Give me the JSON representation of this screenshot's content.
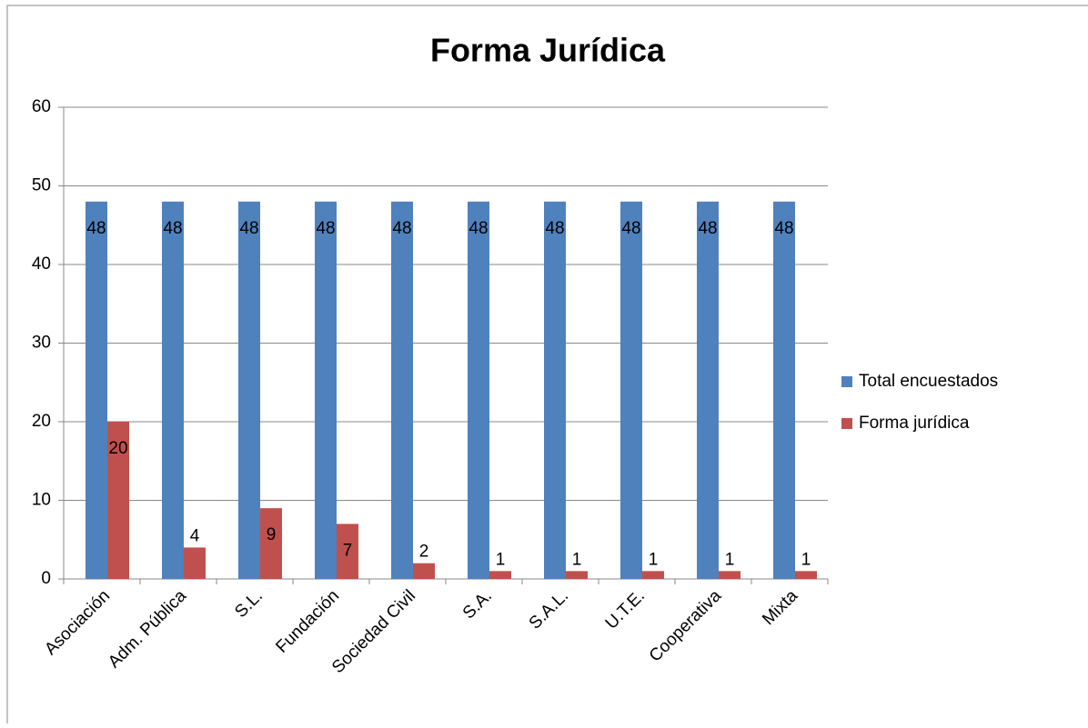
{
  "chart_data": {
    "type": "bar",
    "title": "Forma Jurídica",
    "categories": [
      "Asociación",
      "Adm. Pública",
      "S.L.",
      "Fundación",
      "Sociedad Civil",
      "S.A.",
      "S.A.L.",
      "U.T.E.",
      "Cooperativa",
      "Mixta"
    ],
    "series": [
      {
        "name": "Total encuestados",
        "color": "#4f81bd",
        "values": [
          48,
          48,
          48,
          48,
          48,
          48,
          48,
          48,
          48,
          48
        ]
      },
      {
        "name": "Forma jurídica",
        "color": "#c0504d",
        "values": [
          20,
          4,
          9,
          7,
          2,
          1,
          1,
          1,
          1,
          1
        ]
      }
    ],
    "ylim": [
      0,
      60
    ],
    "yticks": [
      0,
      10,
      20,
      30,
      40,
      50,
      60
    ],
    "grid": true,
    "legend": "right"
  }
}
